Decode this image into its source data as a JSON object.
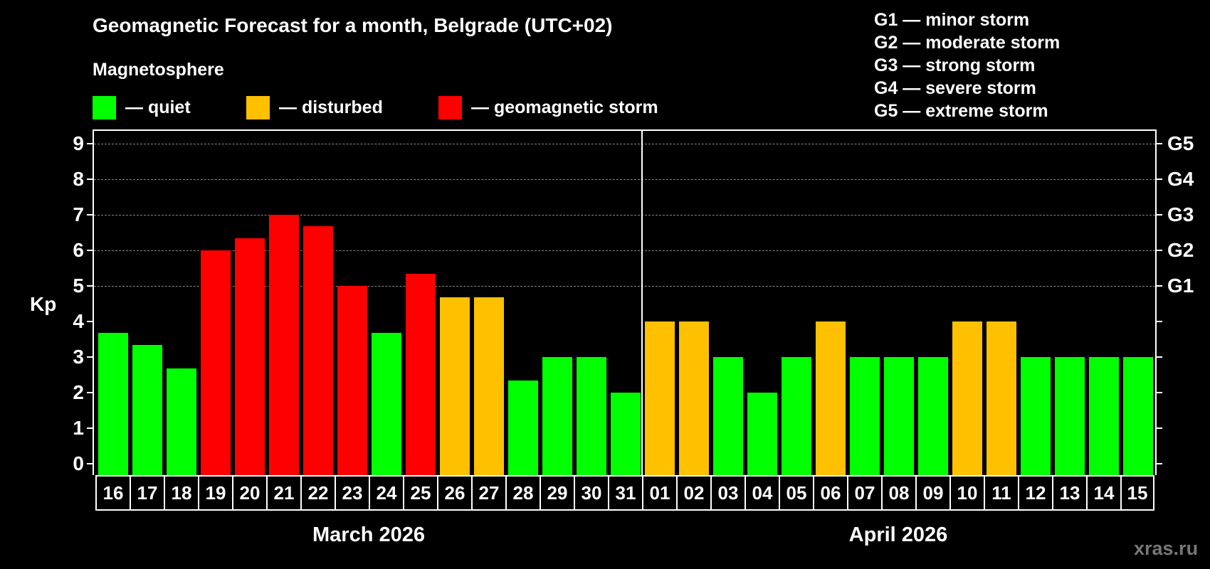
{
  "header": {
    "title": "Geomagnetic Forecast for a month, Belgrade (UTC+02)",
    "subtitle": "Magnetosphere"
  },
  "legend": [
    {
      "label": "— quiet",
      "color": "#00ff00"
    },
    {
      "label": "— disturbed",
      "color": "#ffc000"
    },
    {
      "label": "— geomagnetic storm",
      "color": "#ff0000"
    }
  ],
  "storm_scale": [
    "G1 — minor storm",
    "G2 — moderate storm",
    "G3 — strong storm",
    "G4 — severe storm",
    "G5 — extreme storm"
  ],
  "axis": {
    "ylabel": "Kp",
    "yticks": [
      "0",
      "1",
      "2",
      "3",
      "4",
      "5",
      "6",
      "7",
      "8",
      "9"
    ],
    "g_labels": [
      {
        "kp": 5,
        "label": "G1"
      },
      {
        "kp": 6,
        "label": "G2"
      },
      {
        "kp": 7,
        "label": "G3"
      },
      {
        "kp": 8,
        "label": "G4"
      },
      {
        "kp": 9,
        "label": "G5"
      }
    ]
  },
  "months": {
    "first": "March 2026",
    "second": "April 2026"
  },
  "watermark": "xras.ru",
  "colors": {
    "quiet": "#00ff00",
    "disturbed": "#ffc000",
    "storm": "#ff0000"
  },
  "chart_data": {
    "type": "bar",
    "title": "Geomagnetic Forecast for a month, Belgrade (UTC+02)",
    "subtitle": "Magnetosphere",
    "xlabel": "March 2026 / April 2026",
    "ylabel": "Kp",
    "ylim": [
      0,
      9
    ],
    "grid": "horizontal dashed at Kp 5-9",
    "legend_position": "top",
    "categories": [
      "16",
      "17",
      "18",
      "19",
      "20",
      "21",
      "22",
      "23",
      "24",
      "25",
      "26",
      "27",
      "28",
      "29",
      "30",
      "31",
      "01",
      "02",
      "03",
      "04",
      "05",
      "06",
      "07",
      "08",
      "09",
      "10",
      "11",
      "12",
      "13",
      "14",
      "15"
    ],
    "month_of_category": [
      "March 2026",
      "March 2026",
      "March 2026",
      "March 2026",
      "March 2026",
      "March 2026",
      "March 2026",
      "March 2026",
      "March 2026",
      "March 2026",
      "March 2026",
      "March 2026",
      "March 2026",
      "March 2026",
      "March 2026",
      "March 2026",
      "April 2026",
      "April 2026",
      "April 2026",
      "April 2026",
      "April 2026",
      "April 2026",
      "April 2026",
      "April 2026",
      "April 2026",
      "April 2026",
      "April 2026",
      "April 2026",
      "April 2026",
      "April 2026",
      "April 2026"
    ],
    "values": [
      3.67,
      3.33,
      2.67,
      6.0,
      6.33,
      7.0,
      6.67,
      5.0,
      3.67,
      5.33,
      4.67,
      4.67,
      2.33,
      3.0,
      3.0,
      2.0,
      4.0,
      4.0,
      3.0,
      2.0,
      3.0,
      4.0,
      3.0,
      3.0,
      3.0,
      4.0,
      4.0,
      3.0,
      3.0,
      3.0,
      3.0
    ],
    "status": [
      "quiet",
      "quiet",
      "quiet",
      "storm",
      "storm",
      "storm",
      "storm",
      "storm",
      "quiet",
      "storm",
      "disturbed",
      "disturbed",
      "quiet",
      "quiet",
      "quiet",
      "quiet",
      "disturbed",
      "disturbed",
      "quiet",
      "quiet",
      "quiet",
      "disturbed",
      "quiet",
      "quiet",
      "quiet",
      "disturbed",
      "disturbed",
      "quiet",
      "quiet",
      "quiet",
      "quiet"
    ],
    "right_axis_labels": {
      "5": "G1",
      "6": "G2",
      "7": "G3",
      "8": "G4",
      "9": "G5"
    }
  }
}
